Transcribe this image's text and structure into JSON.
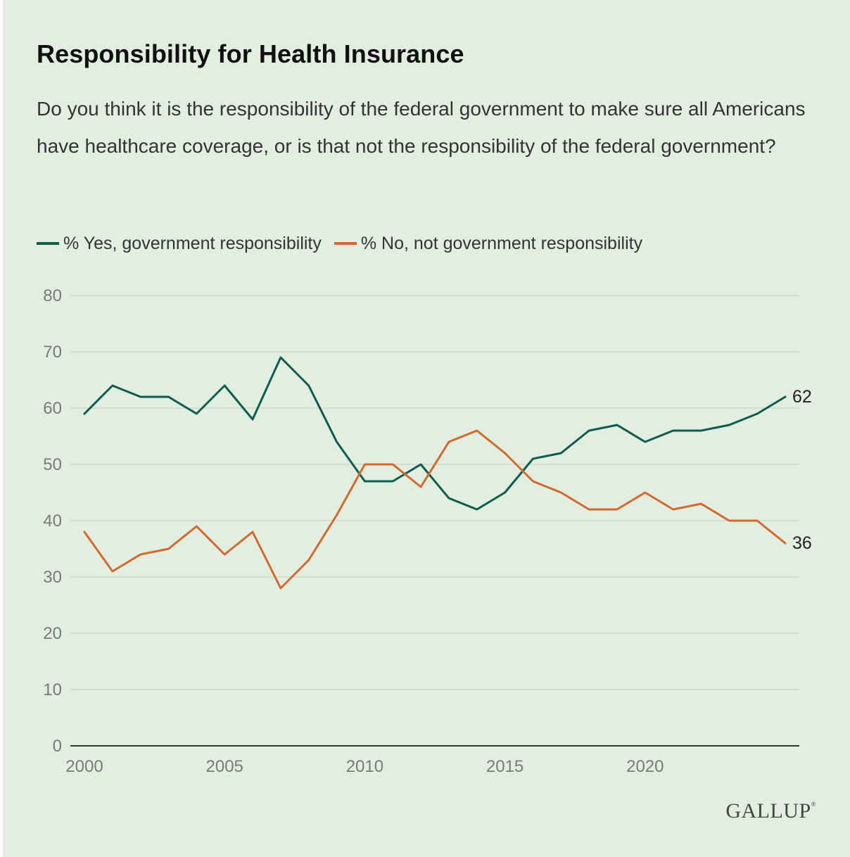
{
  "header": {
    "title": "Responsibility for Health Insurance",
    "subtitle": "Do you think it is the responsibility of the federal government to make sure all Americans have healthcare coverage, or is that not the responsibility of the federal government?"
  },
  "brand": {
    "name": "GALLUP",
    "mark": "®"
  },
  "colors": {
    "background": "#e2efe0",
    "yes": "#0d5c4e",
    "no": "#d2692f",
    "grid": "#cfd9cc",
    "axis": "#333333"
  },
  "chart_data": {
    "type": "line",
    "title": "Responsibility for Health Insurance",
    "xlabel": "",
    "ylabel": "",
    "xlim": [
      2000,
      2025
    ],
    "ylim": [
      0,
      80
    ],
    "yticks": [
      0,
      10,
      20,
      30,
      40,
      50,
      60,
      70,
      80
    ],
    "xticks": [
      2000,
      2005,
      2010,
      2015,
      2020
    ],
    "grid": true,
    "legend": "top-left",
    "x": [
      2000,
      2001,
      2002,
      2003,
      2004,
      2005,
      2006,
      2007,
      2008,
      2009,
      2010,
      2011,
      2012,
      2013,
      2014,
      2015,
      2016,
      2017,
      2018,
      2019,
      2020,
      2021,
      2022,
      2023,
      2024,
      2025
    ],
    "series": [
      {
        "name": "% Yes, government responsibility",
        "color": "#0d5c4e",
        "values": [
          59,
          64,
          62,
          62,
          59,
          64,
          58,
          69,
          64,
          54,
          47,
          47,
          50,
          44,
          42,
          45,
          51,
          52,
          56,
          57,
          54,
          56,
          56,
          57,
          59,
          62
        ],
        "end_label": "62"
      },
      {
        "name": "% No, not government responsibility",
        "color": "#d2692f",
        "values": [
          38,
          31,
          34,
          35,
          39,
          34,
          38,
          28,
          33,
          41,
          50,
          50,
          46,
          54,
          56,
          52,
          47,
          45,
          42,
          42,
          45,
          42,
          43,
          40,
          40,
          36
        ],
        "end_label": "36"
      }
    ]
  }
}
